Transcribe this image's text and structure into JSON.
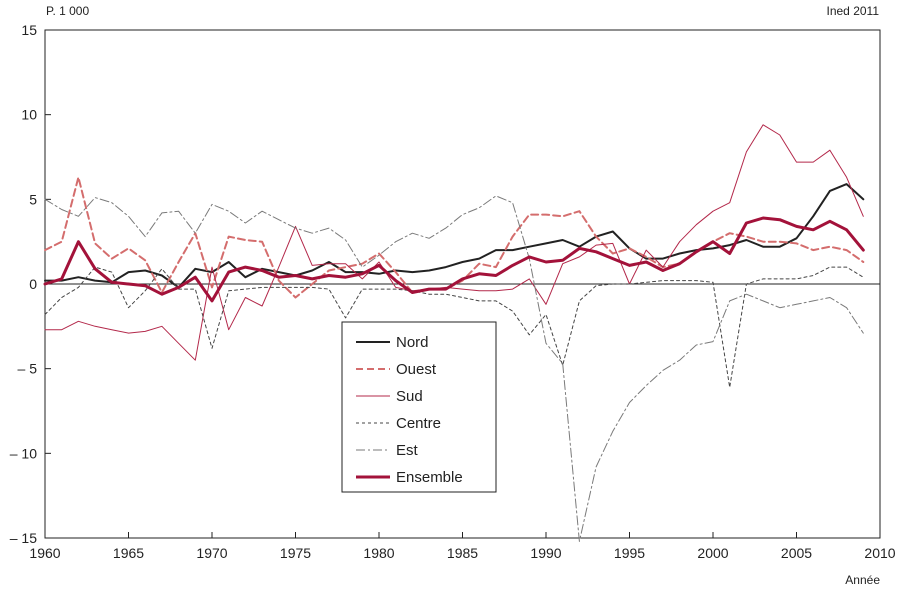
{
  "chart_data": {
    "type": "line",
    "unit_label": "P. 1 000",
    "source_label": "Ined 2011",
    "xlabel": "Année",
    "xlim": [
      1960,
      2010
    ],
    "ylim": [
      -15,
      15
    ],
    "x_ticks": [
      1960,
      1965,
      1970,
      1975,
      1980,
      1985,
      1990,
      1995,
      2000,
      2005,
      2010
    ],
    "y_ticks": [
      15,
      10,
      5,
      0,
      -5,
      -10,
      -15
    ],
    "y_tick_labels": [
      "15",
      "10",
      "5",
      "0",
      "– 5",
      "– 10",
      "– 15"
    ],
    "grid": false,
    "legend_position": "center",
    "x": [
      1960,
      1961,
      1962,
      1963,
      1964,
      1965,
      1966,
      1967,
      1968,
      1969,
      1970,
      1971,
      1972,
      1973,
      1974,
      1975,
      1976,
      1977,
      1978,
      1979,
      1980,
      1981,
      1982,
      1983,
      1984,
      1985,
      1986,
      1987,
      1988,
      1989,
      1990,
      1991,
      1992,
      1993,
      1994,
      1995,
      1996,
      1997,
      1998,
      1999,
      2000,
      2001,
      2002,
      2003,
      2004,
      2005,
      2006,
      2007,
      2008,
      2009
    ],
    "series": [
      {
        "name": "Nord",
        "color": "#222222",
        "style": "solid",
        "values": [
          0.2,
          0.2,
          0.4,
          0.2,
          0.1,
          0.7,
          0.8,
          0.5,
          -0.2,
          0.9,
          0.7,
          1.3,
          0.4,
          0.9,
          0.7,
          0.5,
          0.8,
          1.3,
          0.7,
          0.7,
          0.6,
          0.8,
          0.7,
          0.8,
          1.0,
          1.3,
          1.5,
          2.0,
          2.0,
          2.2,
          2.4,
          2.6,
          2.2,
          2.8,
          3.1,
          2.1,
          1.5,
          1.5,
          1.8,
          2.0,
          2.1,
          2.3,
          2.6,
          2.2,
          2.2,
          2.7,
          4.0,
          5.5,
          5.9,
          5.0
        ]
      },
      {
        "name": "Ouest",
        "color": "#d46d6d",
        "style": "dashed",
        "values": [
          2.0,
          2.5,
          6.3,
          2.4,
          1.5,
          2.1,
          1.4,
          -0.5,
          1.3,
          3.0,
          -0.2,
          2.8,
          2.6,
          2.5,
          0.2,
          -0.8,
          0.0,
          0.8,
          1.0,
          1.2,
          1.8,
          0.7,
          -0.5,
          -0.3,
          -0.3,
          0.2,
          1.2,
          1.0,
          2.8,
          4.1,
          4.1,
          4.0,
          4.3,
          2.8,
          1.8,
          2.1,
          1.6,
          1.0,
          1.2,
          1.9,
          2.5,
          3.0,
          2.8,
          2.5,
          2.5,
          2.4,
          2.0,
          2.2,
          2.0,
          1.3
        ]
      },
      {
        "name": "Sud",
        "color": "#b3284a",
        "style": "thin",
        "values": [
          -2.7,
          -2.7,
          -2.2,
          -2.5,
          -2.7,
          -2.9,
          -2.8,
          -2.5,
          -3.5,
          -4.5,
          1.0,
          -2.7,
          -0.8,
          -1.3,
          1.0,
          3.4,
          1.1,
          1.2,
          1.2,
          0.3,
          1.3,
          -0.2,
          -0.4,
          -0.3,
          -0.2,
          -0.3,
          -0.4,
          -0.4,
          -0.3,
          0.3,
          -1.2,
          1.2,
          1.6,
          2.3,
          2.4,
          0.0,
          2.0,
          1.0,
          2.5,
          3.5,
          4.3,
          4.8,
          7.8,
          9.4,
          8.8,
          7.2,
          7.2,
          7.9,
          6.3,
          4.0
        ]
      },
      {
        "name": "Centre",
        "color": "#444444",
        "style": "dotted",
        "values": [
          -1.8,
          -0.8,
          -0.2,
          1.0,
          0.7,
          -1.4,
          -0.4,
          0.9,
          -0.3,
          -0.3,
          -3.8,
          -0.4,
          -0.3,
          -0.2,
          -0.2,
          -0.2,
          -0.2,
          -0.3,
          -2.0,
          -0.3,
          -0.3,
          -0.3,
          -0.4,
          -0.6,
          -0.6,
          -0.8,
          -1.0,
          -1.0,
          -1.6,
          -3.0,
          -1.8,
          -4.8,
          -1.0,
          -0.1,
          0.0,
          0.0,
          0.1,
          0.2,
          0.2,
          0.2,
          0.1,
          -6.1,
          0.0,
          0.3,
          0.3,
          0.3,
          0.5,
          1.0,
          1.0,
          0.4
        ]
      },
      {
        "name": "Est",
        "color": "#7a7a7a",
        "style": "dashdot",
        "values": [
          5.0,
          4.4,
          4.0,
          5.1,
          4.8,
          4.0,
          2.8,
          4.2,
          4.3,
          3.0,
          4.7,
          4.3,
          3.6,
          4.3,
          3.8,
          3.3,
          3.0,
          3.3,
          2.6,
          1.0,
          1.7,
          2.5,
          3.0,
          2.7,
          3.3,
          4.1,
          4.5,
          5.2,
          4.8,
          1.5,
          -3.5,
          -4.7,
          -15.2,
          -10.8,
          -8.7,
          -7.0,
          -6.0,
          -5.1,
          -4.5,
          -3.6,
          -3.4,
          -1.0,
          -0.6,
          -1.0,
          -1.4,
          -1.2,
          -1.0,
          -0.8,
          -1.4,
          -2.9
        ]
      },
      {
        "name": "Ensemble",
        "color": "#a3123a",
        "style": "bold",
        "values": [
          0.0,
          0.3,
          2.5,
          0.9,
          0.1,
          0.0,
          -0.1,
          -0.6,
          -0.2,
          0.4,
          -1.0,
          0.7,
          1.0,
          0.8,
          0.4,
          0.5,
          0.3,
          0.5,
          0.4,
          0.6,
          1.1,
          0.2,
          -0.5,
          -0.3,
          -0.3,
          0.3,
          0.6,
          0.5,
          1.1,
          1.6,
          1.3,
          1.4,
          2.1,
          1.9,
          1.5,
          1.1,
          1.3,
          0.8,
          1.2,
          1.9,
          2.5,
          1.8,
          3.6,
          3.9,
          3.8,
          3.4,
          3.2,
          3.7,
          3.2,
          2.0
        ]
      }
    ]
  }
}
